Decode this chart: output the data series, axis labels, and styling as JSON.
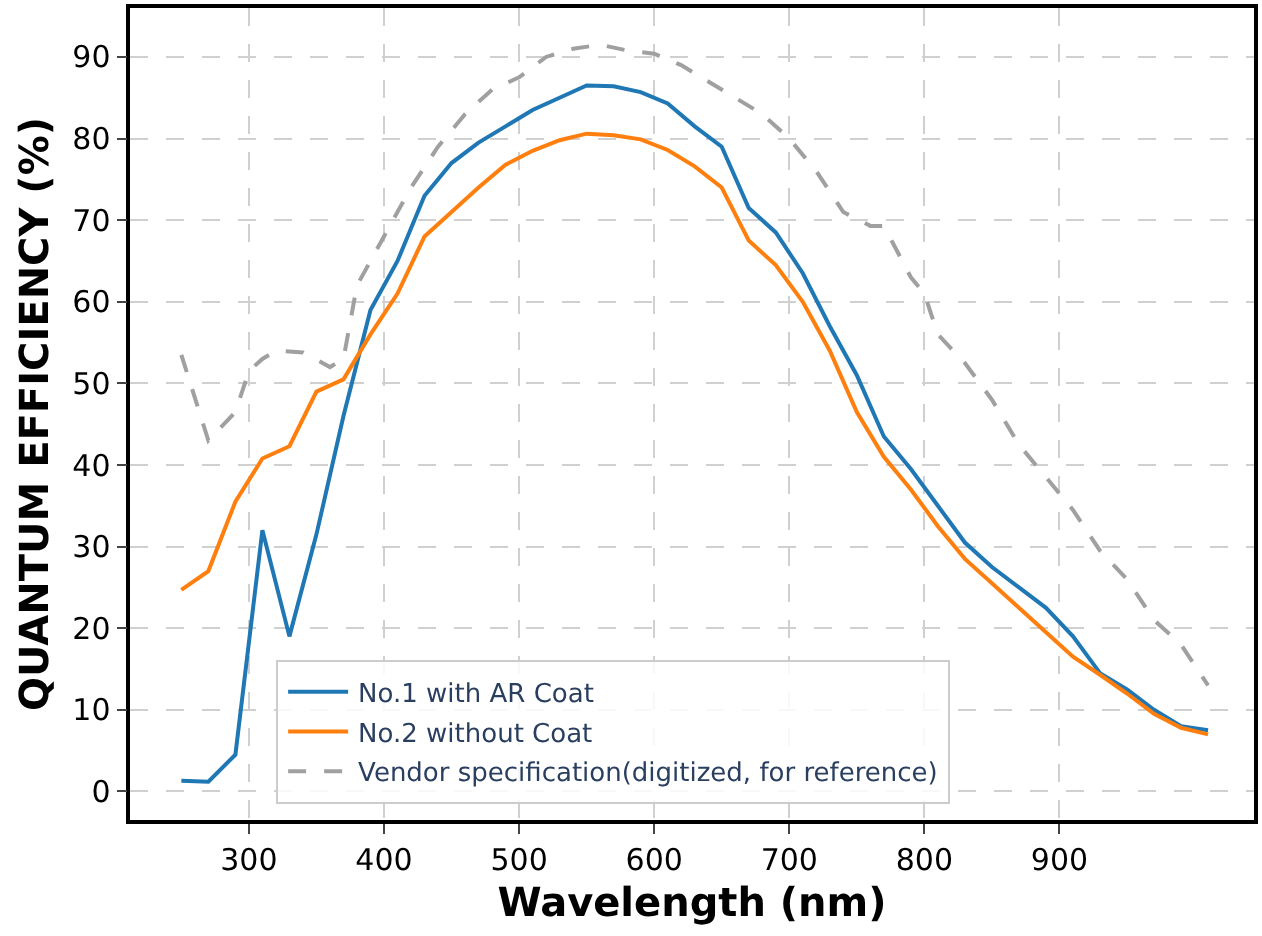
{
  "chart_data": {
    "type": "line",
    "xlabel": "Wavelength (nm)",
    "ylabel": "QUANTUM EFFICIENCY (%)",
    "xlim": [
      212,
      1044
    ],
    "ylim": [
      -3.5,
      96
    ],
    "xticks": [
      300,
      400,
      500,
      600,
      700,
      800,
      900
    ],
    "yticks": [
      0,
      10,
      20,
      30,
      40,
      50,
      60,
      70,
      80,
      90
    ],
    "grid": true,
    "legend": "bottom",
    "marker": "none",
    "series": [
      {
        "name": "No.1 with AR Coat",
        "color": "#1f77b4",
        "line_style": "solid",
        "x": [
          250,
          270,
          290,
          310,
          330,
          350,
          370,
          390,
          410,
          430,
          450,
          470,
          490,
          510,
          530,
          550,
          570,
          590,
          610,
          630,
          650,
          670,
          690,
          710,
          730,
          750,
          770,
          790,
          810,
          830,
          850,
          870,
          890,
          910,
          930,
          950,
          970,
          990,
          1010
        ],
        "values": [
          1.3,
          1.2,
          4.5,
          32,
          19,
          31.5,
          46,
          59,
          65,
          73,
          77,
          79.5,
          81.5,
          83.5,
          85,
          86.5,
          86.4,
          85.7,
          84.3,
          81.5,
          79,
          71.5,
          68.5,
          63.5,
          57,
          51,
          43.5,
          39.5,
          35,
          30.5,
          27.5,
          25,
          22.5,
          19,
          14.5,
          12.5,
          10,
          8,
          7.5
        ]
      },
      {
        "name": "No.2 without Coat",
        "color": "#ff7f0e",
        "line_style": "solid",
        "x": [
          250,
          270,
          290,
          310,
          330,
          350,
          370,
          390,
          410,
          430,
          450,
          470,
          490,
          510,
          530,
          550,
          570,
          590,
          610,
          630,
          650,
          670,
          690,
          710,
          730,
          750,
          770,
          790,
          810,
          830,
          850,
          870,
          890,
          910,
          930,
          950,
          970,
          990,
          1010
        ],
        "values": [
          24.7,
          27,
          35.5,
          40.8,
          42.3,
          49,
          50.5,
          56,
          61,
          68,
          71,
          74,
          76.8,
          78.5,
          79.8,
          80.6,
          80.4,
          79.9,
          78.6,
          76.6,
          74,
          67.5,
          64.5,
          60,
          54,
          46.5,
          41,
          37,
          32.5,
          28.5,
          25.5,
          22.5,
          19.5,
          16.5,
          14.3,
          12,
          9.5,
          7.8,
          7
        ]
      },
      {
        "name": "Vendor specification(digitized, for reference)",
        "color": "#a0a0a0",
        "line_style": "dashed",
        "x": [
          250,
          270,
          290,
          300,
          310,
          320,
          340,
          360,
          370,
          380,
          400,
          420,
          440,
          460,
          480,
          500,
          520,
          540,
          560,
          580,
          600,
          620,
          640,
          660,
          680,
          700,
          720,
          740,
          760,
          770,
          790,
          800,
          810,
          830,
          850,
          870,
          890,
          910,
          930,
          950,
          970,
          990,
          1010
        ],
        "values": [
          53.5,
          43,
          46.5,
          51.5,
          53,
          54,
          53.8,
          52,
          53,
          62,
          68,
          74,
          79,
          83,
          86,
          87.5,
          90,
          91,
          91.5,
          90.8,
          90.4,
          89,
          87,
          85,
          83,
          80,
          76,
          71,
          69.3,
          69.3,
          63,
          61,
          56,
          52.5,
          48,
          42.5,
          38.5,
          34.5,
          29.5,
          26,
          21,
          18,
          13
        ]
      }
    ]
  }
}
